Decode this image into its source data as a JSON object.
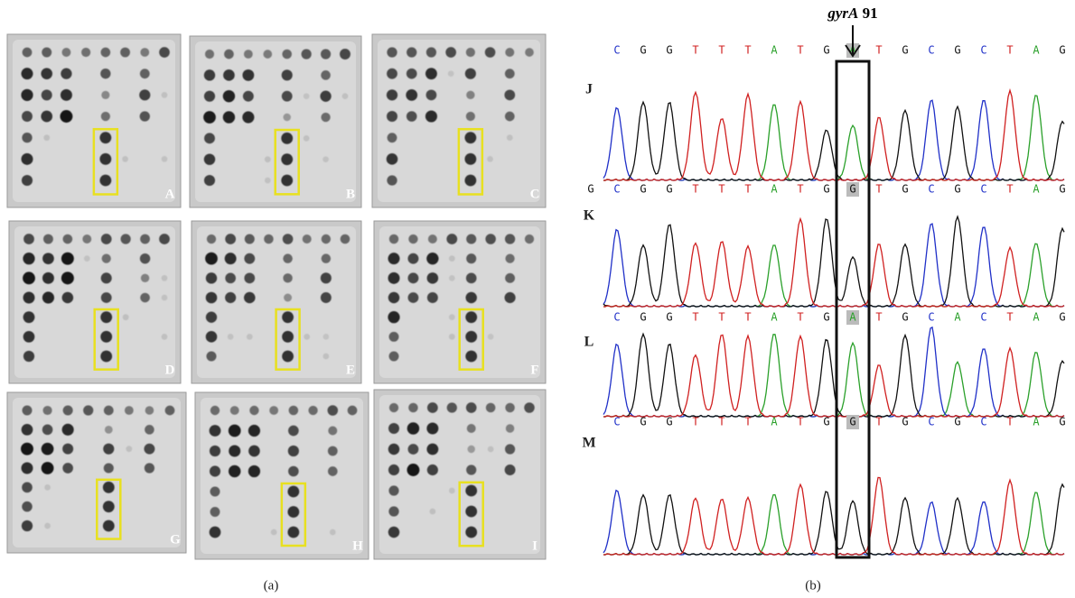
{
  "annotation": {
    "gene": "gyrA",
    "position": "91"
  },
  "captions": [
    "(a)",
    "(b)"
  ],
  "membranes": [
    "A",
    "B",
    "C",
    "D",
    "E",
    "F",
    "G",
    "H",
    "I"
  ],
  "traces": [
    {
      "label": "J",
      "sequence": [
        "C",
        "G",
        "G",
        "T",
        "T",
        "T",
        "A",
        "T",
        "G",
        "A",
        "T",
        "G",
        "C",
        "G",
        "C",
        "T",
        "A",
        "G"
      ]
    },
    {
      "label": "K",
      "sequence": [
        "G",
        "C",
        "G",
        "G",
        "T",
        "T",
        "T",
        "A",
        "T",
        "G",
        "G",
        "T",
        "G",
        "C",
        "G",
        "C",
        "T",
        "A",
        "G"
      ]
    },
    {
      "label": "L",
      "sequence": [
        "C",
        "G",
        "G",
        "T",
        "T",
        "T",
        "A",
        "T",
        "G",
        "A",
        "T",
        "G",
        "C",
        "A",
        "C",
        "T",
        "A",
        "G"
      ]
    },
    {
      "label": "M",
      "sequence": [
        "C",
        "G",
        "G",
        "T",
        "T",
        "T",
        "A",
        "T",
        "G",
        "G",
        "T",
        "G",
        "C",
        "G",
        "C",
        "T",
        "A",
        "G"
      ]
    }
  ]
}
